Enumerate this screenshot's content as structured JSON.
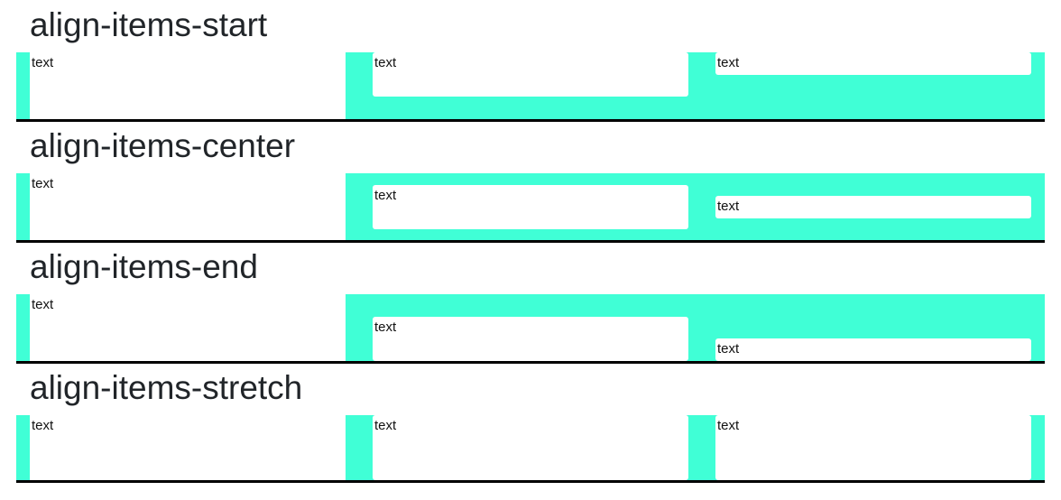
{
  "sections": [
    {
      "title": "align-items-start",
      "boxes": [
        "text",
        "text",
        "text"
      ]
    },
    {
      "title": "align-items-center",
      "boxes": [
        "text",
        "text",
        "text"
      ]
    },
    {
      "title": "align-items-end",
      "boxes": [
        "text",
        "text",
        "text"
      ]
    },
    {
      "title": "align-items-stretch",
      "boxes": [
        "text",
        "text",
        "text"
      ]
    }
  ],
  "colors": {
    "row_background": "#40ffd6",
    "box_background": "#ffffff",
    "row_border": "#000000",
    "heading_text": "#212529"
  }
}
